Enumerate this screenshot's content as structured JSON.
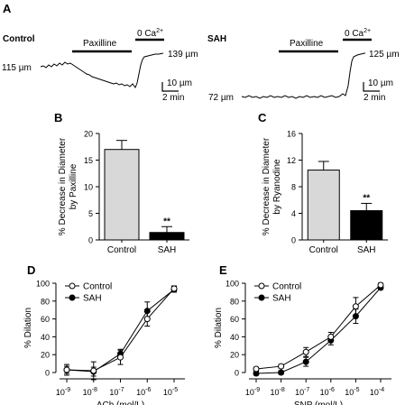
{
  "panels": {
    "A": {
      "label": "A",
      "control": {
        "title": "Control",
        "drug_label": "Paxilline",
        "calcium_label": "0 Ca",
        "calcium_sup": "2+",
        "start_diameter": "115 µm",
        "end_diameter": "139 µm",
        "scale_y": "10 µm",
        "scale_x": "2 min"
      },
      "sah": {
        "title": "SAH",
        "drug_label": "Paxilline",
        "calcium_label": "0 Ca",
        "calcium_sup": "2+",
        "start_diameter": "72 µm",
        "end_diameter": "125 µm",
        "scale_y": "10 µm",
        "scale_x": "2 min"
      }
    },
    "B": {
      "label": "B"
    },
    "C": {
      "label": "C"
    },
    "D": {
      "label": "D"
    },
    "E": {
      "label": "E"
    }
  },
  "chart_data": [
    {
      "panel": "B",
      "type": "bar",
      "categories": [
        "Control",
        "SAH"
      ],
      "values": [
        17,
        1.4
      ],
      "errors": [
        1.7,
        1.1
      ],
      "bar_colors": [
        "#d8d8d8",
        "#000000"
      ],
      "significance": [
        "",
        "**"
      ],
      "ylabel_line1": "% Decrease in Diameter",
      "ylabel_line2": "by Paxilline",
      "ylim": [
        0,
        20
      ],
      "yticks": [
        "0",
        "5",
        "10",
        "15",
        "20"
      ]
    },
    {
      "panel": "C",
      "type": "bar",
      "categories": [
        "Control",
        "SAH"
      ],
      "values": [
        10.5,
        4.4
      ],
      "errors": [
        1.3,
        1.1
      ],
      "bar_colors": [
        "#d8d8d8",
        "#000000"
      ],
      "significance": [
        "",
        "**"
      ],
      "ylabel_line1": "% Decrease in Diameter",
      "ylabel_line2": "by Ryanodine",
      "ylim": [
        0,
        16
      ],
      "yticks": [
        "0",
        "4",
        "8",
        "12",
        "16"
      ]
    },
    {
      "panel": "D",
      "type": "line",
      "x_exponents": [
        -9,
        -8,
        -7,
        -6,
        -5
      ],
      "xtick_base": "10",
      "xlabel": "ACh (mol/L)",
      "ylabel": "% Dilation",
      "ylim": [
        0,
        100
      ],
      "yticks": [
        "0",
        "20",
        "40",
        "60",
        "80",
        "100"
      ],
      "legend_position": "top-left",
      "series": [
        {
          "name": "Control",
          "marker": "open-circle",
          "values": [
            3,
            2,
            17,
            60,
            94
          ],
          "errors": [
            4,
            10,
            8,
            8,
            3
          ]
        },
        {
          "name": "SAH",
          "marker": "filled-circle",
          "values": [
            3,
            1,
            21,
            69,
            93
          ],
          "errors": [
            6,
            5,
            5,
            10,
            3
          ]
        }
      ]
    },
    {
      "panel": "E",
      "type": "line",
      "x_exponents": [
        -9,
        -8,
        -7,
        -6,
        -5,
        -4
      ],
      "xtick_base": "10",
      "xlabel": "SNP (mol/L)",
      "ylabel": "% Dilation",
      "ylim": [
        0,
        100
      ],
      "yticks": [
        "0",
        "20",
        "40",
        "60",
        "80",
        "100"
      ],
      "legend_position": "top-left",
      "series": [
        {
          "name": "Control",
          "marker": "open-circle",
          "values": [
            4,
            7,
            23,
            40,
            74,
            98
          ],
          "errors": [
            2,
            2,
            5,
            5,
            10,
            2
          ]
        },
        {
          "name": "SAH",
          "marker": "filled-circle",
          "values": [
            -1,
            0,
            12,
            36,
            63,
            95
          ],
          "errors": [
            2,
            2,
            5,
            5,
            8,
            2
          ]
        }
      ]
    }
  ]
}
